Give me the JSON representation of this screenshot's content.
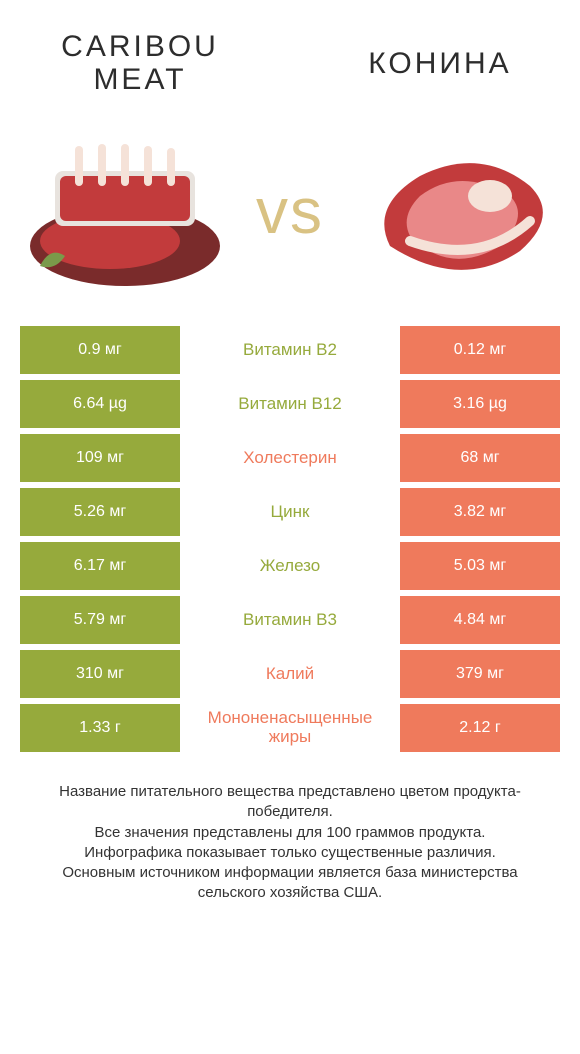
{
  "colors": {
    "left": "#96aa3c",
    "right": "#ef7a5c",
    "vs": "#d9c283",
    "title": "#2d2d2d",
    "text": "#333333",
    "meat_red": "#c23b3c",
    "meat_dark": "#7a2b2b",
    "meat_fat": "#f5e2d8",
    "meat_marble": "#e98888"
  },
  "titles": {
    "left": "Caribou meat",
    "right": "Конина"
  },
  "vs_label": "vs",
  "rows": [
    {
      "left": "0.9 мг",
      "label": "Витамин B2",
      "right": "0.12 мг",
      "winner": "left"
    },
    {
      "left": "6.64 µg",
      "label": "Витамин B12",
      "right": "3.16 µg",
      "winner": "left"
    },
    {
      "left": "109 мг",
      "label": "Холестерин",
      "right": "68 мг",
      "winner": "right"
    },
    {
      "left": "5.26 мг",
      "label": "Цинк",
      "right": "3.82 мг",
      "winner": "left"
    },
    {
      "left": "6.17 мг",
      "label": "Железо",
      "right": "5.03 мг",
      "winner": "left"
    },
    {
      "left": "5.79 мг",
      "label": "Витамин B3",
      "right": "4.84 мг",
      "winner": "left"
    },
    {
      "left": "310 мг",
      "label": "Калий",
      "right": "379 мг",
      "winner": "right"
    },
    {
      "left": "1.33 г",
      "label": "Мононенасыщенные жиры",
      "right": "2.12 г",
      "winner": "right"
    }
  ],
  "footer": [
    "Название питательного вещества представлено цветом продукта-победителя.",
    "Все значения представлены для 100 граммов продукта.",
    "Инфографика показывает только существенные различия.",
    "Основным источником информации является база министерства сельского хозяйства США."
  ],
  "typography": {
    "title_fontsize": 30,
    "vs_fontsize": 64,
    "cell_fontsize": 16,
    "label_fontsize": 17,
    "footer_fontsize": 15
  }
}
